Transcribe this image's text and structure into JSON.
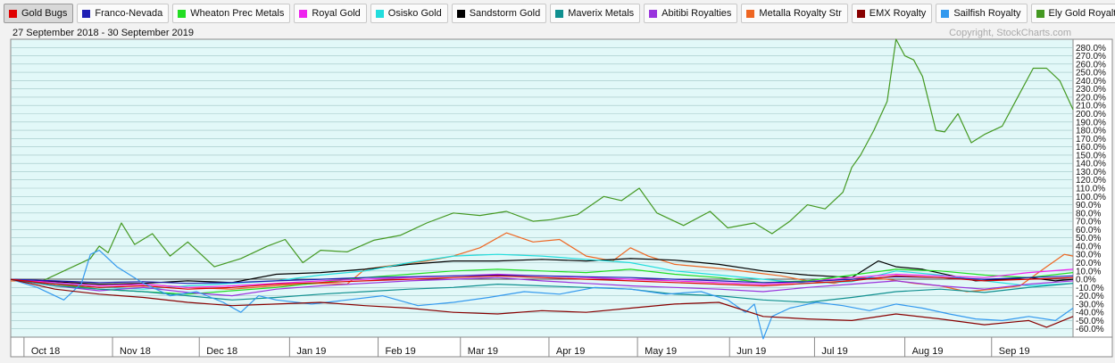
{
  "legend": [
    {
      "name": "Gold Bugs",
      "color": "#e00000",
      "active": true
    },
    {
      "name": "Franco-Nevada",
      "color": "#1f1fb4"
    },
    {
      "name": "Wheaton Prec Metals",
      "color": "#22dd22"
    },
    {
      "name": "Royal Gold",
      "color": "#ee22ee"
    },
    {
      "name": "Osisko Gold",
      "color": "#22dddd"
    },
    {
      "name": "Sandstorm Gold",
      "color": "#000000"
    },
    {
      "name": "Maverix Metals",
      "color": "#109090"
    },
    {
      "name": "Abitibi Royalties",
      "color": "#9933dd"
    },
    {
      "name": "Metalla Royalty Str",
      "color": "#ee6622"
    },
    {
      "name": "EMX Royalty",
      "color": "#880000"
    },
    {
      "name": "Sailfish Royalty",
      "color": "#3399ee"
    },
    {
      "name": "Ely Gold Royalties",
      "color": "#449922"
    }
  ],
  "date_range": "27 September 2018 - 30 September 2019",
  "copyright": "Copyright, StockCharts.com",
  "chart_data": {
    "type": "line",
    "ylim": [
      -70,
      290
    ],
    "ytick_step": 10,
    "ytick_labels": [
      "-60.0%",
      "-50.0%",
      "-40.0%",
      "-30.0%",
      "-20.0%",
      "-10.0%",
      "0.0%",
      "10.0%",
      "20.0%",
      "30.0%",
      "40.0%",
      "50.0%",
      "60.0%",
      "70.0%",
      "80.0%",
      "90.0%",
      "100.0%",
      "110.0%",
      "120.0%",
      "130.0%",
      "140.0%",
      "150.0%",
      "160.0%",
      "170.0%",
      "180.0%",
      "190.0%",
      "200.0%",
      "210.0%",
      "220.0%",
      "230.0%",
      "240.0%",
      "250.0%",
      "260.0%",
      "270.0%",
      "280.0%"
    ],
    "xlim": [
      0,
      12
    ],
    "months": [
      {
        "label": "Oct 18",
        "pos": 0.15
      },
      {
        "label": "Nov 18",
        "pos": 1.15
      },
      {
        "label": "Dec 18",
        "pos": 2.13
      },
      {
        "label": "Jan 19",
        "pos": 3.15
      },
      {
        "label": "Feb 19",
        "pos": 4.15
      },
      {
        "label": "Mar 19",
        "pos": 5.08
      },
      {
        "label": "Apr 19",
        "pos": 6.08
      },
      {
        "label": "May 19",
        "pos": 7.08
      },
      {
        "label": "Jun 19",
        "pos": 8.12
      },
      {
        "label": "Jul 19",
        "pos": 9.08
      },
      {
        "label": "Aug 19",
        "pos": 10.1
      },
      {
        "label": "Sep 19",
        "pos": 11.08
      }
    ],
    "series": [
      {
        "name": "Ely Gold Royalties",
        "color": "#449922",
        "x": [
          0,
          0.3,
          0.6,
          0.9,
          1.0,
          1.1,
          1.25,
          1.4,
          1.6,
          1.8,
          2.0,
          2.3,
          2.6,
          2.9,
          3.1,
          3.3,
          3.5,
          3.8,
          4.1,
          4.4,
          4.7,
          5.0,
          5.3,
          5.6,
          5.9,
          6.1,
          6.4,
          6.7,
          6.9,
          7.1,
          7.3,
          7.6,
          7.9,
          8.1,
          8.4,
          8.6,
          8.8,
          9.0,
          9.2,
          9.4,
          9.5,
          9.6,
          9.75,
          9.9,
          10.0,
          10.1,
          10.2,
          10.3,
          10.45,
          10.55,
          10.7,
          10.85,
          11.0,
          11.2,
          11.4,
          11.55,
          11.7,
          11.85,
          12.0
        ],
        "y": [
          0,
          -5,
          10,
          25,
          40,
          32,
          68,
          42,
          55,
          28,
          45,
          15,
          25,
          40,
          48,
          20,
          35,
          33,
          47,
          53,
          68,
          80,
          77,
          82,
          70,
          72,
          78,
          100,
          95,
          110,
          80,
          65,
          82,
          62,
          68,
          55,
          70,
          90,
          85,
          105,
          135,
          150,
          180,
          215,
          290,
          270,
          265,
          245,
          180,
          178,
          200,
          165,
          175,
          185,
          225,
          255,
          255,
          240,
          205
        ]
      },
      {
        "name": "Metalla Royalty Str",
        "color": "#ee6622",
        "x": [
          0,
          0.5,
          1.0,
          1.5,
          2.0,
          2.5,
          3.0,
          3.5,
          3.8,
          4.0,
          4.4,
          4.7,
          5.0,
          5.3,
          5.6,
          5.9,
          6.2,
          6.5,
          6.8,
          7.0,
          7.2,
          7.5,
          7.8,
          8.1,
          8.4,
          8.7,
          9.0,
          9.3,
          9.6,
          9.9,
          10.2,
          10.5,
          10.8,
          11.1,
          11.4,
          11.7,
          11.9,
          12.0
        ],
        "y": [
          -2,
          -4,
          -8,
          -6,
          -10,
          -12,
          -8,
          -5,
          -6,
          12,
          18,
          22,
          28,
          38,
          56,
          45,
          48,
          28,
          22,
          38,
          28,
          18,
          15,
          12,
          8,
          4,
          -2,
          -5,
          2,
          0,
          -5,
          -8,
          -15,
          -12,
          -8,
          15,
          30,
          28
        ]
      },
      {
        "name": "Sandstorm Gold",
        "color": "#000000",
        "x": [
          0,
          0.5,
          1.0,
          1.5,
          2.0,
          2.5,
          3.0,
          3.5,
          4.0,
          4.5,
          5.0,
          5.5,
          6.0,
          6.5,
          7.0,
          7.5,
          8.0,
          8.5,
          9.0,
          9.5,
          9.8,
          10.0,
          10.3,
          10.6,
          10.9,
          11.2,
          11.5,
          11.8,
          12.0
        ],
        "y": [
          0,
          -3,
          -6,
          -5,
          -2,
          -4,
          6,
          8,
          12,
          18,
          22,
          22,
          24,
          22,
          25,
          23,
          18,
          10,
          5,
          2,
          22,
          15,
          12,
          5,
          -2,
          0,
          2,
          -2,
          0
        ]
      },
      {
        "name": "Osisko Gold",
        "color": "#22dddd",
        "x": [
          0,
          0.5,
          1.0,
          1.5,
          2.0,
          2.5,
          3.0,
          3.5,
          4.0,
          4.5,
          5.0,
          5.5,
          6.0,
          6.5,
          7.0,
          7.5,
          8.0,
          8.5,
          9.0,
          9.5,
          10.0,
          10.5,
          11.0,
          11.5,
          12.0
        ],
        "y": [
          0,
          -5,
          -10,
          -12,
          -8,
          -5,
          -2,
          5,
          10,
          20,
          28,
          30,
          28,
          24,
          20,
          10,
          5,
          0,
          -5,
          -3,
          10,
          5,
          -2,
          -8,
          -5
        ]
      },
      {
        "name": "Wheaton Prec Metals",
        "color": "#22dd22",
        "x": [
          0,
          0.5,
          1.0,
          1.5,
          2.0,
          2.5,
          3.0,
          3.5,
          4.0,
          4.5,
          5.0,
          5.5,
          6.0,
          6.5,
          7.0,
          7.5,
          8.0,
          8.5,
          9.0,
          9.5,
          10.0,
          10.5,
          11.0,
          11.5,
          12.0
        ],
        "y": [
          0,
          -6,
          -12,
          -15,
          -18,
          -14,
          -10,
          -4,
          2,
          6,
          10,
          12,
          10,
          8,
          12,
          6,
          2,
          -4,
          -2,
          5,
          12,
          10,
          5,
          2,
          8
        ]
      },
      {
        "name": "Royal Gold",
        "color": "#ee22ee",
        "x": [
          0,
          0.5,
          1.0,
          1.5,
          2.0,
          2.5,
          3.0,
          3.5,
          4.0,
          4.5,
          5.0,
          5.5,
          6.0,
          6.5,
          7.0,
          7.5,
          8.0,
          8.5,
          9.0,
          9.5,
          10.0,
          10.5,
          11.0,
          11.5,
          12.0
        ],
        "y": [
          0,
          -4,
          -8,
          -6,
          -10,
          -8,
          -5,
          -2,
          0,
          2,
          4,
          6,
          4,
          2,
          0,
          -2,
          -4,
          -6,
          -3,
          2,
          6,
          4,
          2,
          8,
          12
        ]
      },
      {
        "name": "Franco-Nevada",
        "color": "#1f1fb4",
        "x": [
          0,
          0.5,
          1.0,
          1.5,
          2.0,
          2.5,
          3.0,
          3.5,
          4.0,
          4.5,
          5.0,
          5.5,
          6.0,
          6.5,
          7.0,
          7.5,
          8.0,
          8.5,
          9.0,
          9.5,
          10.0,
          10.5,
          11.0,
          11.5,
          12.0
        ],
        "y": [
          0,
          -2,
          -4,
          -3,
          -5,
          -4,
          -2,
          0,
          2,
          3,
          4,
          5,
          4,
          3,
          2,
          0,
          -2,
          -4,
          -3,
          0,
          3,
          2,
          0,
          2,
          4
        ]
      },
      {
        "name": "Abitibi Royalties",
        "color": "#9933dd",
        "x": [
          0,
          0.5,
          1.0,
          1.5,
          2.0,
          2.5,
          3.0,
          3.5,
          4.0,
          4.5,
          5.0,
          5.5,
          6.0,
          6.5,
          7.0,
          7.5,
          8.0,
          8.5,
          9.0,
          9.5,
          10.0,
          10.5,
          11.0,
          11.5,
          12.0
        ],
        "y": [
          0,
          -8,
          -14,
          -10,
          -16,
          -20,
          -12,
          -8,
          -5,
          -2,
          0,
          2,
          -2,
          -5,
          -8,
          -10,
          -12,
          -15,
          -10,
          -6,
          -2,
          -8,
          -12,
          -6,
          -2
        ]
      },
      {
        "name": "Maverix Metals",
        "color": "#109090",
        "x": [
          0,
          0.5,
          1.0,
          1.5,
          2.0,
          2.5,
          3.0,
          3.5,
          4.0,
          4.5,
          5.0,
          5.5,
          6.0,
          6.5,
          7.0,
          7.5,
          8.0,
          8.5,
          9.0,
          9.5,
          10.0,
          10.5,
          11.0,
          11.5,
          12.0
        ],
        "y": [
          0,
          -8,
          -12,
          -15,
          -20,
          -25,
          -22,
          -18,
          -15,
          -12,
          -10,
          -6,
          -8,
          -10,
          -12,
          -18,
          -20,
          -25,
          -28,
          -22,
          -15,
          -12,
          -16,
          -10,
          -5
        ]
      },
      {
        "name": "Gold Bugs",
        "color": "#e00000",
        "x": [
          0,
          0.5,
          1.0,
          1.5,
          2.0,
          2.5,
          3.0,
          3.5,
          4.0,
          4.5,
          5.0,
          5.5,
          6.0,
          6.5,
          7.0,
          7.5,
          8.0,
          8.5,
          9.0,
          9.5,
          10.0,
          10.5,
          11.0,
          11.5,
          12.0
        ],
        "y": [
          0,
          -6,
          -10,
          -8,
          -12,
          -10,
          -6,
          -4,
          -2,
          0,
          2,
          4,
          2,
          0,
          -2,
          -4,
          -6,
          -8,
          -5,
          -2,
          4,
          2,
          -2,
          0,
          2
        ]
      },
      {
        "name": "Sailfish Royalty",
        "color": "#3399ee",
        "x": [
          0,
          0.3,
          0.6,
          0.8,
          0.9,
          1.0,
          1.2,
          1.5,
          1.8,
          2.1,
          2.4,
          2.6,
          2.8,
          3.0,
          3.4,
          3.8,
          4.2,
          4.6,
          5.0,
          5.4,
          5.8,
          6.2,
          6.6,
          7.0,
          7.4,
          7.8,
          8.1,
          8.3,
          8.4,
          8.5,
          8.6,
          8.8,
          9.1,
          9.4,
          9.7,
          10.0,
          10.3,
          10.6,
          10.9,
          11.2,
          11.5,
          11.8,
          12.0
        ],
        "y": [
          0,
          -10,
          -25,
          -5,
          30,
          35,
          15,
          -5,
          -20,
          -15,
          -28,
          -40,
          -20,
          -25,
          -30,
          -25,
          -20,
          -32,
          -28,
          -22,
          -15,
          -18,
          -10,
          -12,
          -18,
          -15,
          -25,
          -40,
          -30,
          -72,
          -45,
          -35,
          -28,
          -32,
          -38,
          -30,
          -35,
          -42,
          -48,
          -50,
          -45,
          -50,
          -35
        ]
      },
      {
        "name": "EMX Royalty",
        "color": "#880000",
        "x": [
          0,
          0.5,
          1.0,
          1.5,
          2.0,
          2.5,
          3.0,
          3.5,
          4.0,
          4.5,
          5.0,
          5.5,
          6.0,
          6.5,
          7.0,
          7.5,
          8.0,
          8.5,
          9.0,
          9.5,
          10.0,
          10.5,
          11.0,
          11.5,
          11.7,
          12.0
        ],
        "y": [
          0,
          -12,
          -18,
          -22,
          -28,
          -32,
          -30,
          -28,
          -32,
          -35,
          -40,
          -42,
          -38,
          -40,
          -35,
          -30,
          -28,
          -45,
          -48,
          -50,
          -42,
          -48,
          -55,
          -50,
          -58,
          -45
        ]
      }
    ]
  }
}
